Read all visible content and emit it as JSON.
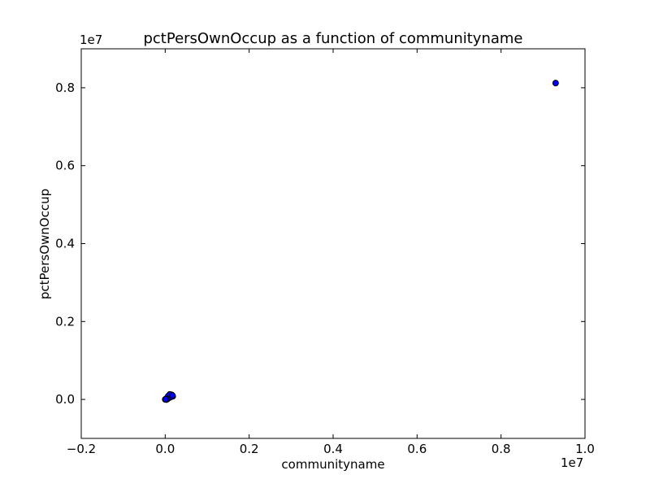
{
  "chart_data": {
    "type": "scatter",
    "title": "pctPersOwnOccup as a function of communityname",
    "xlabel": "communityname",
    "ylabel": "pctPersOwnOccup",
    "x_offset_label": "1e7",
    "y_offset_label": "1e7",
    "xlim": [
      -2000000,
      10000000
    ],
    "ylim": [
      -1000000,
      9000000
    ],
    "x_ticks": [
      -2000000,
      0,
      2000000,
      4000000,
      6000000,
      8000000,
      10000000
    ],
    "x_tick_labels": [
      "−0.2",
      "0.0",
      "0.2",
      "0.4",
      "0.6",
      "0.8",
      "1.0"
    ],
    "y_ticks": [
      0,
      2000000,
      4000000,
      6000000,
      8000000
    ],
    "y_tick_labels": [
      "0.0",
      "0.2",
      "0.4",
      "0.6",
      "0.8"
    ],
    "grid": false,
    "marker_color": "#0000ff",
    "marker_edge": "#000000",
    "points": [
      {
        "x": 9300000,
        "y": 8120000
      },
      {
        "x": 0,
        "y": 0
      },
      {
        "x": 20000,
        "y": 15000
      },
      {
        "x": 40000,
        "y": 30000
      },
      {
        "x": 60000,
        "y": 50000
      },
      {
        "x": 80000,
        "y": 70000
      },
      {
        "x": 100000,
        "y": 90000
      },
      {
        "x": 120000,
        "y": 100000
      },
      {
        "x": 140000,
        "y": 110000
      },
      {
        "x": 160000,
        "y": 95000
      },
      {
        "x": 180000,
        "y": 80000
      },
      {
        "x": 90000,
        "y": 40000
      },
      {
        "x": 50000,
        "y": 10000
      },
      {
        "x": 30000,
        "y": -5000
      },
      {
        "x": 130000,
        "y": 60000
      },
      {
        "x": 150000,
        "y": 120000
      },
      {
        "x": 70000,
        "y": 85000
      },
      {
        "x": 10000,
        "y": 5000
      },
      {
        "x": 110000,
        "y": 130000
      },
      {
        "x": 170000,
        "y": 105000
      }
    ]
  }
}
